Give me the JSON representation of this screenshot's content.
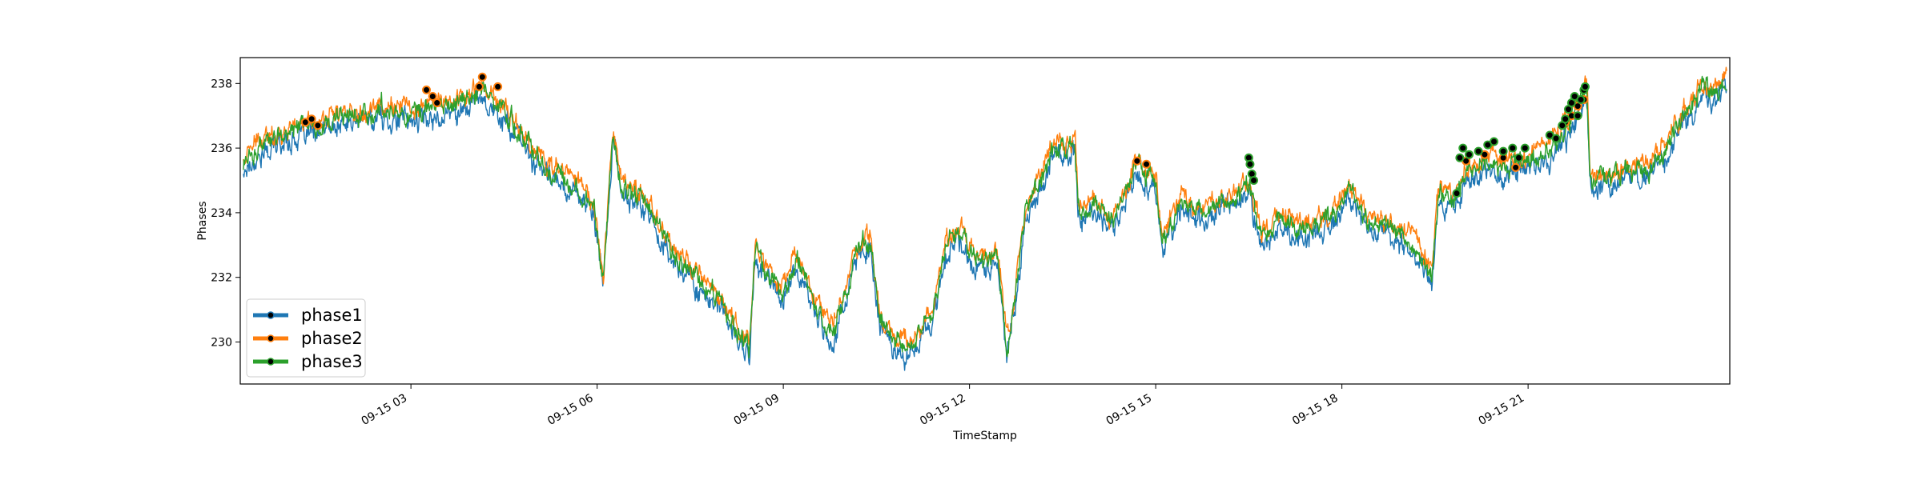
{
  "chart_data": {
    "type": "line",
    "xlabel": "TimeStamp",
    "ylabel": "Phases",
    "x_range": [
      "2023-09-15 00:15",
      "2023-09-15 24:15"
    ],
    "ylim": [
      228.7,
      238.8
    ],
    "y_ticks": [
      230,
      232,
      234,
      236,
      238
    ],
    "x_ticks": [
      {
        "label": "09-15 03",
        "hour": 3
      },
      {
        "label": "09-15 06",
        "hour": 6
      },
      {
        "label": "09-15 09",
        "hour": 9
      },
      {
        "label": "09-15 12",
        "hour": 12
      },
      {
        "label": "09-15 15",
        "hour": 15
      },
      {
        "label": "09-15 18",
        "hour": 18
      },
      {
        "label": "09-15 21",
        "hour": 21
      }
    ],
    "grid": false,
    "legend_position": "lower-left",
    "series": [
      {
        "name": "phase1",
        "color": "#1f77b4",
        "offset": -0.25,
        "noise": 0.45,
        "anomalies": []
      },
      {
        "name": "phase2",
        "color": "#ff7f0e",
        "offset": 0.15,
        "noise": 0.4,
        "anomalies": [
          {
            "hour": 1.3,
            "value": 236.8
          },
          {
            "hour": 1.4,
            "value": 236.9
          },
          {
            "hour": 1.5,
            "value": 236.7
          },
          {
            "hour": 3.25,
            "value": 237.8
          },
          {
            "hour": 3.35,
            "value": 237.6
          },
          {
            "hour": 3.42,
            "value": 237.4
          },
          {
            "hour": 4.1,
            "value": 237.9
          },
          {
            "hour": 4.15,
            "value": 238.2
          },
          {
            "hour": 4.4,
            "value": 237.9
          },
          {
            "hour": 14.7,
            "value": 235.6
          },
          {
            "hour": 14.85,
            "value": 235.5
          },
          {
            "hour": 21.6,
            "value": 236.8
          },
          {
            "hour": 21.7,
            "value": 237.0
          },
          {
            "hour": 21.8,
            "value": 237.3
          },
          {
            "hour": 21.9,
            "value": 237.5
          },
          {
            "hour": 20.0,
            "value": 235.6
          },
          {
            "hour": 20.3,
            "value": 235.8
          },
          {
            "hour": 20.6,
            "value": 235.7
          },
          {
            "hour": 20.8,
            "value": 235.4
          }
        ]
      },
      {
        "name": "phase3",
        "color": "#2ca02c",
        "offset": 0.0,
        "noise": 0.4,
        "anomalies": [
          {
            "hour": 16.5,
            "value": 235.7
          },
          {
            "hour": 16.52,
            "value": 235.5
          },
          {
            "hour": 16.55,
            "value": 235.2
          },
          {
            "hour": 16.58,
            "value": 235.0
          },
          {
            "hour": 19.85,
            "value": 234.6
          },
          {
            "hour": 19.9,
            "value": 235.7
          },
          {
            "hour": 19.95,
            "value": 236.0
          },
          {
            "hour": 20.05,
            "value": 235.8
          },
          {
            "hour": 20.2,
            "value": 235.9
          },
          {
            "hour": 20.35,
            "value": 236.1
          },
          {
            "hour": 20.45,
            "value": 236.2
          },
          {
            "hour": 20.6,
            "value": 235.9
          },
          {
            "hour": 20.75,
            "value": 236.0
          },
          {
            "hour": 20.85,
            "value": 235.7
          },
          {
            "hour": 20.95,
            "value": 236.0
          },
          {
            "hour": 21.35,
            "value": 236.4
          },
          {
            "hour": 21.45,
            "value": 236.3
          },
          {
            "hour": 21.55,
            "value": 236.7
          },
          {
            "hour": 21.6,
            "value": 236.9
          },
          {
            "hour": 21.65,
            "value": 237.2
          },
          {
            "hour": 21.7,
            "value": 237.4
          },
          {
            "hour": 21.75,
            "value": 237.6
          },
          {
            "hour": 21.8,
            "value": 237.0
          },
          {
            "hour": 21.85,
            "value": 237.5
          },
          {
            "hour": 21.9,
            "value": 237.8
          },
          {
            "hour": 21.92,
            "value": 237.9
          }
        ]
      }
    ],
    "base_curve": [
      [
        0.15,
        235.0
      ],
      [
        0.4,
        235.8
      ],
      [
        1.0,
        236.5
      ],
      [
        1.5,
        236.7
      ],
      [
        2.0,
        237.0
      ],
      [
        2.5,
        237.2
      ],
      [
        3.0,
        237.1
      ],
      [
        3.3,
        237.2
      ],
      [
        3.6,
        237.3
      ],
      [
        3.9,
        237.5
      ],
      [
        4.15,
        237.9
      ],
      [
        4.3,
        237.5
      ],
      [
        4.6,
        236.9
      ],
      [
        5.0,
        235.8
      ],
      [
        5.3,
        235.2
      ],
      [
        5.7,
        234.9
      ],
      [
        5.95,
        234.0
      ],
      [
        6.1,
        232.0
      ],
      [
        6.25,
        236.5
      ],
      [
        6.4,
        234.8
      ],
      [
        6.8,
        234.3
      ],
      [
        7.2,
        232.8
      ],
      [
        7.6,
        232.0
      ],
      [
        8.0,
        231.2
      ],
      [
        8.3,
        230.2
      ],
      [
        8.45,
        229.8
      ],
      [
        8.55,
        232.8
      ],
      [
        8.8,
        232.0
      ],
      [
        9.0,
        231.6
      ],
      [
        9.2,
        232.6
      ],
      [
        9.4,
        231.6
      ],
      [
        9.8,
        230.2
      ],
      [
        10.0,
        231.6
      ],
      [
        10.25,
        233.0
      ],
      [
        10.4,
        233.2
      ],
      [
        10.55,
        230.8
      ],
      [
        10.75,
        230.2
      ],
      [
        11.0,
        229.8
      ],
      [
        11.4,
        230.8
      ],
      [
        11.6,
        232.8
      ],
      [
        11.8,
        233.5
      ],
      [
        12.0,
        232.8
      ],
      [
        12.3,
        232.4
      ],
      [
        12.45,
        232.8
      ],
      [
        12.6,
        229.8
      ],
      [
        12.75,
        231.6
      ],
      [
        12.9,
        234.0
      ],
      [
        13.1,
        234.8
      ],
      [
        13.3,
        235.8
      ],
      [
        13.5,
        236.0
      ],
      [
        13.7,
        236.2
      ],
      [
        13.75,
        234.0
      ],
      [
        14.0,
        234.2
      ],
      [
        14.3,
        233.8
      ],
      [
        14.5,
        234.6
      ],
      [
        14.7,
        235.5
      ],
      [
        15.0,
        235.0
      ],
      [
        15.1,
        233.0
      ],
      [
        15.4,
        234.3
      ],
      [
        15.8,
        234.0
      ],
      [
        16.2,
        234.4
      ],
      [
        16.5,
        234.8
      ],
      [
        16.7,
        233.2
      ],
      [
        17.0,
        233.8
      ],
      [
        17.4,
        233.5
      ],
      [
        17.8,
        233.8
      ],
      [
        18.1,
        234.8
      ],
      [
        18.4,
        233.8
      ],
      [
        18.8,
        233.5
      ],
      [
        19.2,
        233.0
      ],
      [
        19.45,
        232.0
      ],
      [
        19.55,
        234.5
      ],
      [
        19.8,
        234.5
      ],
      [
        20.0,
        235.2
      ],
      [
        20.4,
        235.6
      ],
      [
        20.8,
        235.4
      ],
      [
        21.2,
        235.8
      ],
      [
        21.6,
        236.5
      ],
      [
        21.95,
        237.8
      ],
      [
        22.0,
        235.0
      ],
      [
        22.4,
        235.2
      ],
      [
        22.8,
        235.2
      ],
      [
        23.2,
        235.8
      ],
      [
        23.5,
        237.0
      ],
      [
        23.8,
        237.8
      ],
      [
        24.0,
        237.6
      ],
      [
        24.15,
        238.0
      ]
    ]
  }
}
